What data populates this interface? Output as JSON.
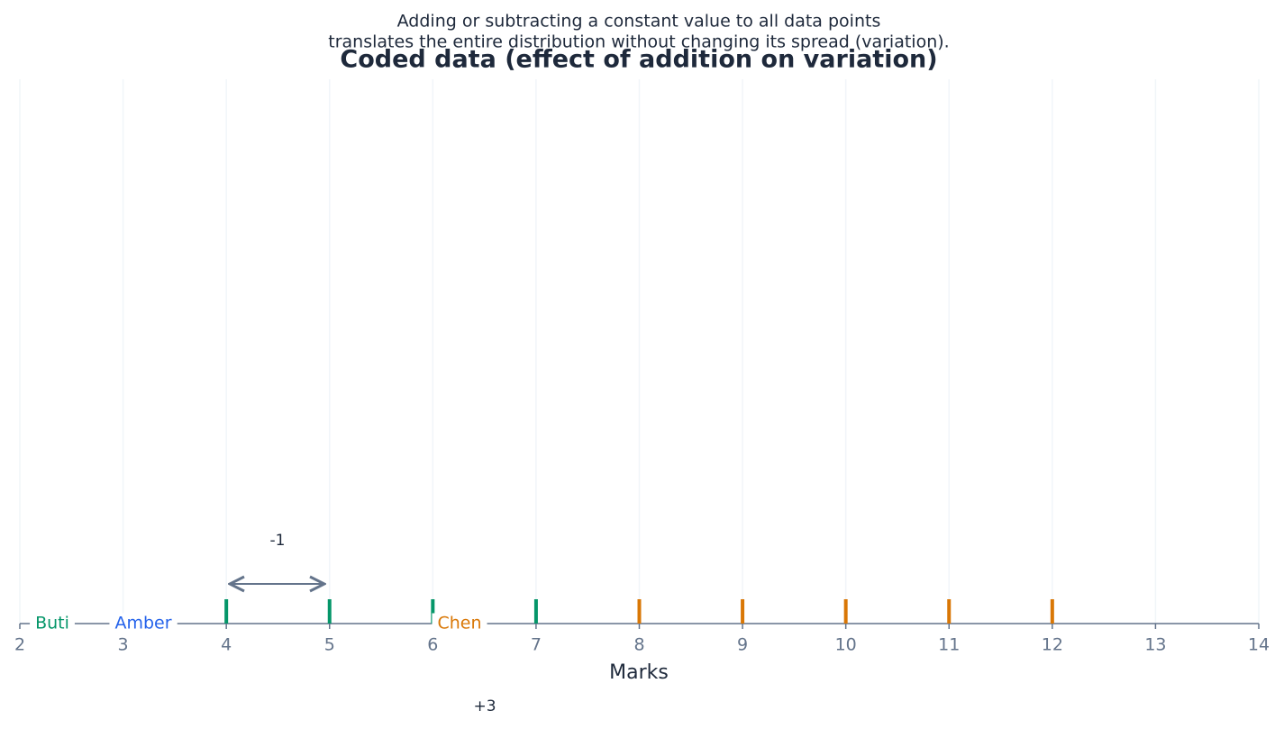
{
  "chart_data": {
    "type": "strip",
    "title": "Coded data (effect of addition on variation)",
    "subtitle": [
      "Adding or subtracting a constant value to all data points",
      "translates the entire distribution without changing its spread (variation)."
    ],
    "x_label": "Marks",
    "xlim": [
      2,
      14
    ],
    "xticks": [
      2,
      3,
      4,
      5,
      6,
      7,
      8,
      9,
      10,
      11,
      12,
      13,
      14
    ],
    "grid": true,
    "series": [
      {
        "name": "Buti",
        "color": "#059669",
        "values": [
          4,
          5,
          6,
          7
        ]
      },
      {
        "name": "Amber",
        "color": "#2563eb",
        "values": []
      },
      {
        "name": "Chen",
        "color": "#d97706",
        "values": [
          8,
          9,
          10,
          11,
          12
        ]
      }
    ],
    "annotations": [
      "-1",
      "+3"
    ]
  }
}
